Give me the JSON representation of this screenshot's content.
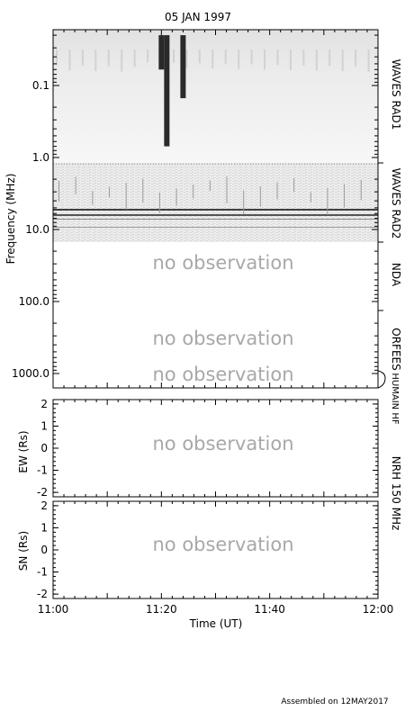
{
  "chart_data": [
    {
      "type": "heatmap",
      "title": "05 JAN 1997",
      "ylabel": "Frequency (MHz)",
      "y_scale": "log",
      "ylim": [
        0.04,
        1000
      ],
      "y_ticks": [
        {
          "value": 0.1,
          "label": "0.1"
        },
        {
          "value": 1,
          "label": "1.0"
        },
        {
          "value": 10,
          "label": "10.0"
        },
        {
          "value": 100,
          "label": "100.0"
        },
        {
          "value": 1000,
          "label": "1000.0"
        }
      ],
      "bands": [
        {
          "name": "WAVES RAD1",
          "freq_range": [
            0.02,
            1.08
          ],
          "observed": true
        },
        {
          "name": "WAVES RAD2",
          "freq_range": [
            1.08,
            13.8
          ],
          "observed": true
        },
        {
          "name": "NDA",
          "freq_range": [
            13.8,
            100
          ],
          "observed": false,
          "status_text": "no observation"
        },
        {
          "name": "ORFEES",
          "freq_range": [
            140,
            1000
          ],
          "observed": false,
          "status_text": "no observation"
        },
        {
          "name": "HUMAIN HF",
          "freq_range": [
            1000,
            1500
          ],
          "observed": false,
          "status_text": "no observation"
        }
      ],
      "bursts": [
        {
          "time": "11:20",
          "freq_from": 0.02,
          "freq_to": 0.06
        },
        {
          "time": "11:21",
          "freq_from": 0.02,
          "freq_to": 0.7
        },
        {
          "time": "11:24",
          "freq_from": 0.02,
          "freq_to": 0.15
        }
      ]
    },
    {
      "type": "scatter",
      "ylabel": "EW (Rs)",
      "band_label": "NRH 150 MHz",
      "ylim": [
        -2.2,
        2.2
      ],
      "y_ticks": [
        -2,
        -1,
        0,
        1,
        2
      ],
      "observed": false,
      "status_text": "no observation"
    },
    {
      "type": "scatter",
      "ylabel": "SN (Rs)",
      "ylim": [
        -2.2,
        2.2
      ],
      "y_ticks": [
        -2,
        -1,
        0,
        1,
        2
      ],
      "observed": false,
      "status_text": "no observation"
    }
  ],
  "x_axis": {
    "label": "Time (UT)",
    "range": [
      "11:00",
      "12:00"
    ],
    "tick_labels": [
      "11:00",
      "11:20",
      "11:40",
      "12:00"
    ]
  },
  "footer": "Assembled on 12MAY2017"
}
